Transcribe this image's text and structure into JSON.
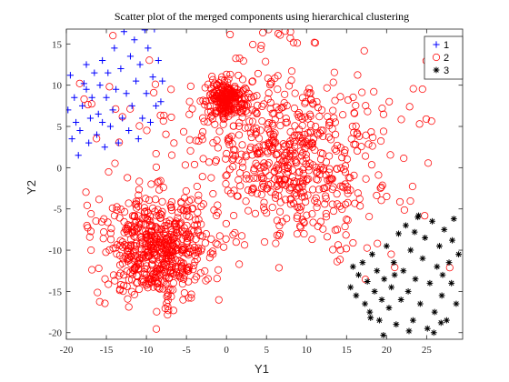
{
  "chart_data": {
    "type": "scatter",
    "title": "Scatter plot of the merged components using hierarchical clustering",
    "xlabel": "Y1",
    "ylabel": "Y2",
    "xlim": [
      -20,
      29.5
    ],
    "ylim": [
      -20.8,
      16.8
    ],
    "xticks": [
      -20,
      -15,
      -10,
      -5,
      0,
      5,
      10,
      15,
      20,
      25
    ],
    "yticks": [
      -20,
      -15,
      -10,
      -5,
      0,
      5,
      10,
      15
    ],
    "xtick_labels": [
      "-20",
      "-15",
      "-10",
      "-5",
      "0",
      "5",
      "10",
      "15",
      "20",
      "25"
    ],
    "ytick_labels": [
      "-20",
      "-15",
      "-10",
      "-5",
      "0",
      "5",
      "10",
      "15"
    ],
    "grid": false,
    "legend_position": "top-right",
    "series": [
      {
        "name": "1",
        "marker": "plus",
        "color": "#0000ff",
        "points": [
          [
            -19.8,
            7.0
          ],
          [
            -19.5,
            11.2
          ],
          [
            -19.3,
            3.5
          ],
          [
            -19.0,
            8.5
          ],
          [
            -18.8,
            5.5
          ],
          [
            -18.5,
            1.5
          ],
          [
            -18.3,
            4.5
          ],
          [
            -18.0,
            7.5
          ],
          [
            -17.8,
            10.2
          ],
          [
            -17.5,
            12.5
          ],
          [
            -17.2,
            3.0
          ],
          [
            -17.0,
            6.0
          ],
          [
            -16.8,
            8.5
          ],
          [
            -16.5,
            11.5
          ],
          [
            -16.2,
            4.0
          ],
          [
            -16.0,
            6.5
          ],
          [
            -15.8,
            10.0
          ],
          [
            -15.5,
            13.0
          ],
          [
            -15.2,
            2.5
          ],
          [
            -15.0,
            8.5
          ],
          [
            -14.8,
            11.5
          ],
          [
            -14.5,
            5.0
          ],
          [
            -14.2,
            7.0
          ],
          [
            -14.0,
            14.5
          ],
          [
            -13.8,
            9.5
          ],
          [
            -13.5,
            3.0
          ],
          [
            -13.2,
            12.0
          ],
          [
            -13.0,
            6.0
          ],
          [
            -12.8,
            16.5
          ],
          [
            -12.5,
            9.0
          ],
          [
            -12.2,
            4.5
          ],
          [
            -12.0,
            13.5
          ],
          [
            -11.8,
            7.5
          ],
          [
            -11.5,
            15.5
          ],
          [
            -11.3,
            10.5
          ],
          [
            -11.0,
            3.5
          ],
          [
            -10.8,
            12.5
          ],
          [
            -10.5,
            6.0
          ],
          [
            -10.2,
            16.7
          ],
          [
            -10.0,
            9.0
          ],
          [
            -9.8,
            14.5
          ],
          [
            -9.5,
            5.5
          ],
          [
            -9.2,
            11.0
          ],
          [
            -9.0,
            16.8
          ],
          [
            -8.8,
            7.5
          ],
          [
            -8.5,
            13.0
          ],
          [
            -8.2,
            8.0
          ],
          [
            -8.0,
            10.5
          ],
          [
            -17.5,
            9.5
          ],
          [
            -15.5,
            5.5
          ]
        ]
      },
      {
        "name": "2",
        "marker": "circle",
        "color": "#ff0000",
        "clusters": [
          {
            "cx": -8.8,
            "cy": -9.8,
            "sx": 3.3,
            "sy": 3.1,
            "n": 560
          },
          {
            "cx": 0.0,
            "cy": 8.2,
            "sx": 1.3,
            "sy": 1.1,
            "n": 230
          },
          {
            "cx": 8.5,
            "cy": 1.0,
            "sx": 5.2,
            "sy": 5.0,
            "n": 480
          },
          {
            "cx": 3.0,
            "cy": 2.0,
            "sx": 12.0,
            "sy": 9.5,
            "n": 230
          }
        ]
      },
      {
        "name": "3",
        "marker": "star",
        "color": "#000000",
        "points": [
          [
            15.5,
            -14.5
          ],
          [
            15.8,
            -12.0
          ],
          [
            16.2,
            -15.5
          ],
          [
            16.5,
            -13.0
          ],
          [
            17.0,
            -11.5
          ],
          [
            17.3,
            -16.5
          ],
          [
            17.6,
            -13.8
          ],
          [
            17.9,
            -17.5
          ],
          [
            18.2,
            -10.5
          ],
          [
            18.5,
            -15.0
          ],
          [
            18.8,
            -12.5
          ],
          [
            19.1,
            -18.5
          ],
          [
            19.4,
            -16.0
          ],
          [
            19.7,
            -13.5
          ],
          [
            20.0,
            -9.5
          ],
          [
            20.3,
            -17.0
          ],
          [
            20.6,
            -14.5
          ],
          [
            20.9,
            -11.5
          ],
          [
            21.2,
            -19.0
          ],
          [
            21.5,
            -8.0
          ],
          [
            21.8,
            -16.0
          ],
          [
            22.1,
            -12.5
          ],
          [
            22.4,
            -7.0
          ],
          [
            22.7,
            -15.0
          ],
          [
            23.0,
            -10.0
          ],
          [
            23.3,
            -18.5
          ],
          [
            23.6,
            -13.5
          ],
          [
            23.9,
            -6.0
          ],
          [
            24.2,
            -16.5
          ],
          [
            24.5,
            -11.0
          ],
          [
            24.8,
            -8.5
          ],
          [
            25.1,
            -19.5
          ],
          [
            25.4,
            -14.0
          ],
          [
            25.7,
            -6.5
          ],
          [
            26.0,
            -17.5
          ],
          [
            26.3,
            -12.0
          ],
          [
            26.6,
            -9.5
          ],
          [
            26.9,
            -15.5
          ],
          [
            27.2,
            -7.5
          ],
          [
            27.5,
            -18.5
          ],
          [
            27.8,
            -11.5
          ],
          [
            28.1,
            -14.0
          ],
          [
            28.4,
            -6.2
          ],
          [
            28.7,
            -16.5
          ],
          [
            29.0,
            -10.5
          ],
          [
            25.9,
            -20.0
          ],
          [
            22.8,
            -19.8
          ],
          [
            19.6,
            -20.3
          ],
          [
            24.0,
            -5.8
          ],
          [
            26.8,
            -18.8
          ],
          [
            28.2,
            -8.8
          ],
          [
            21.0,
            -13.0
          ],
          [
            23.5,
            -7.8
          ],
          [
            27.0,
            -13.0
          ],
          [
            18.0,
            -18.2
          ]
        ]
      }
    ]
  }
}
